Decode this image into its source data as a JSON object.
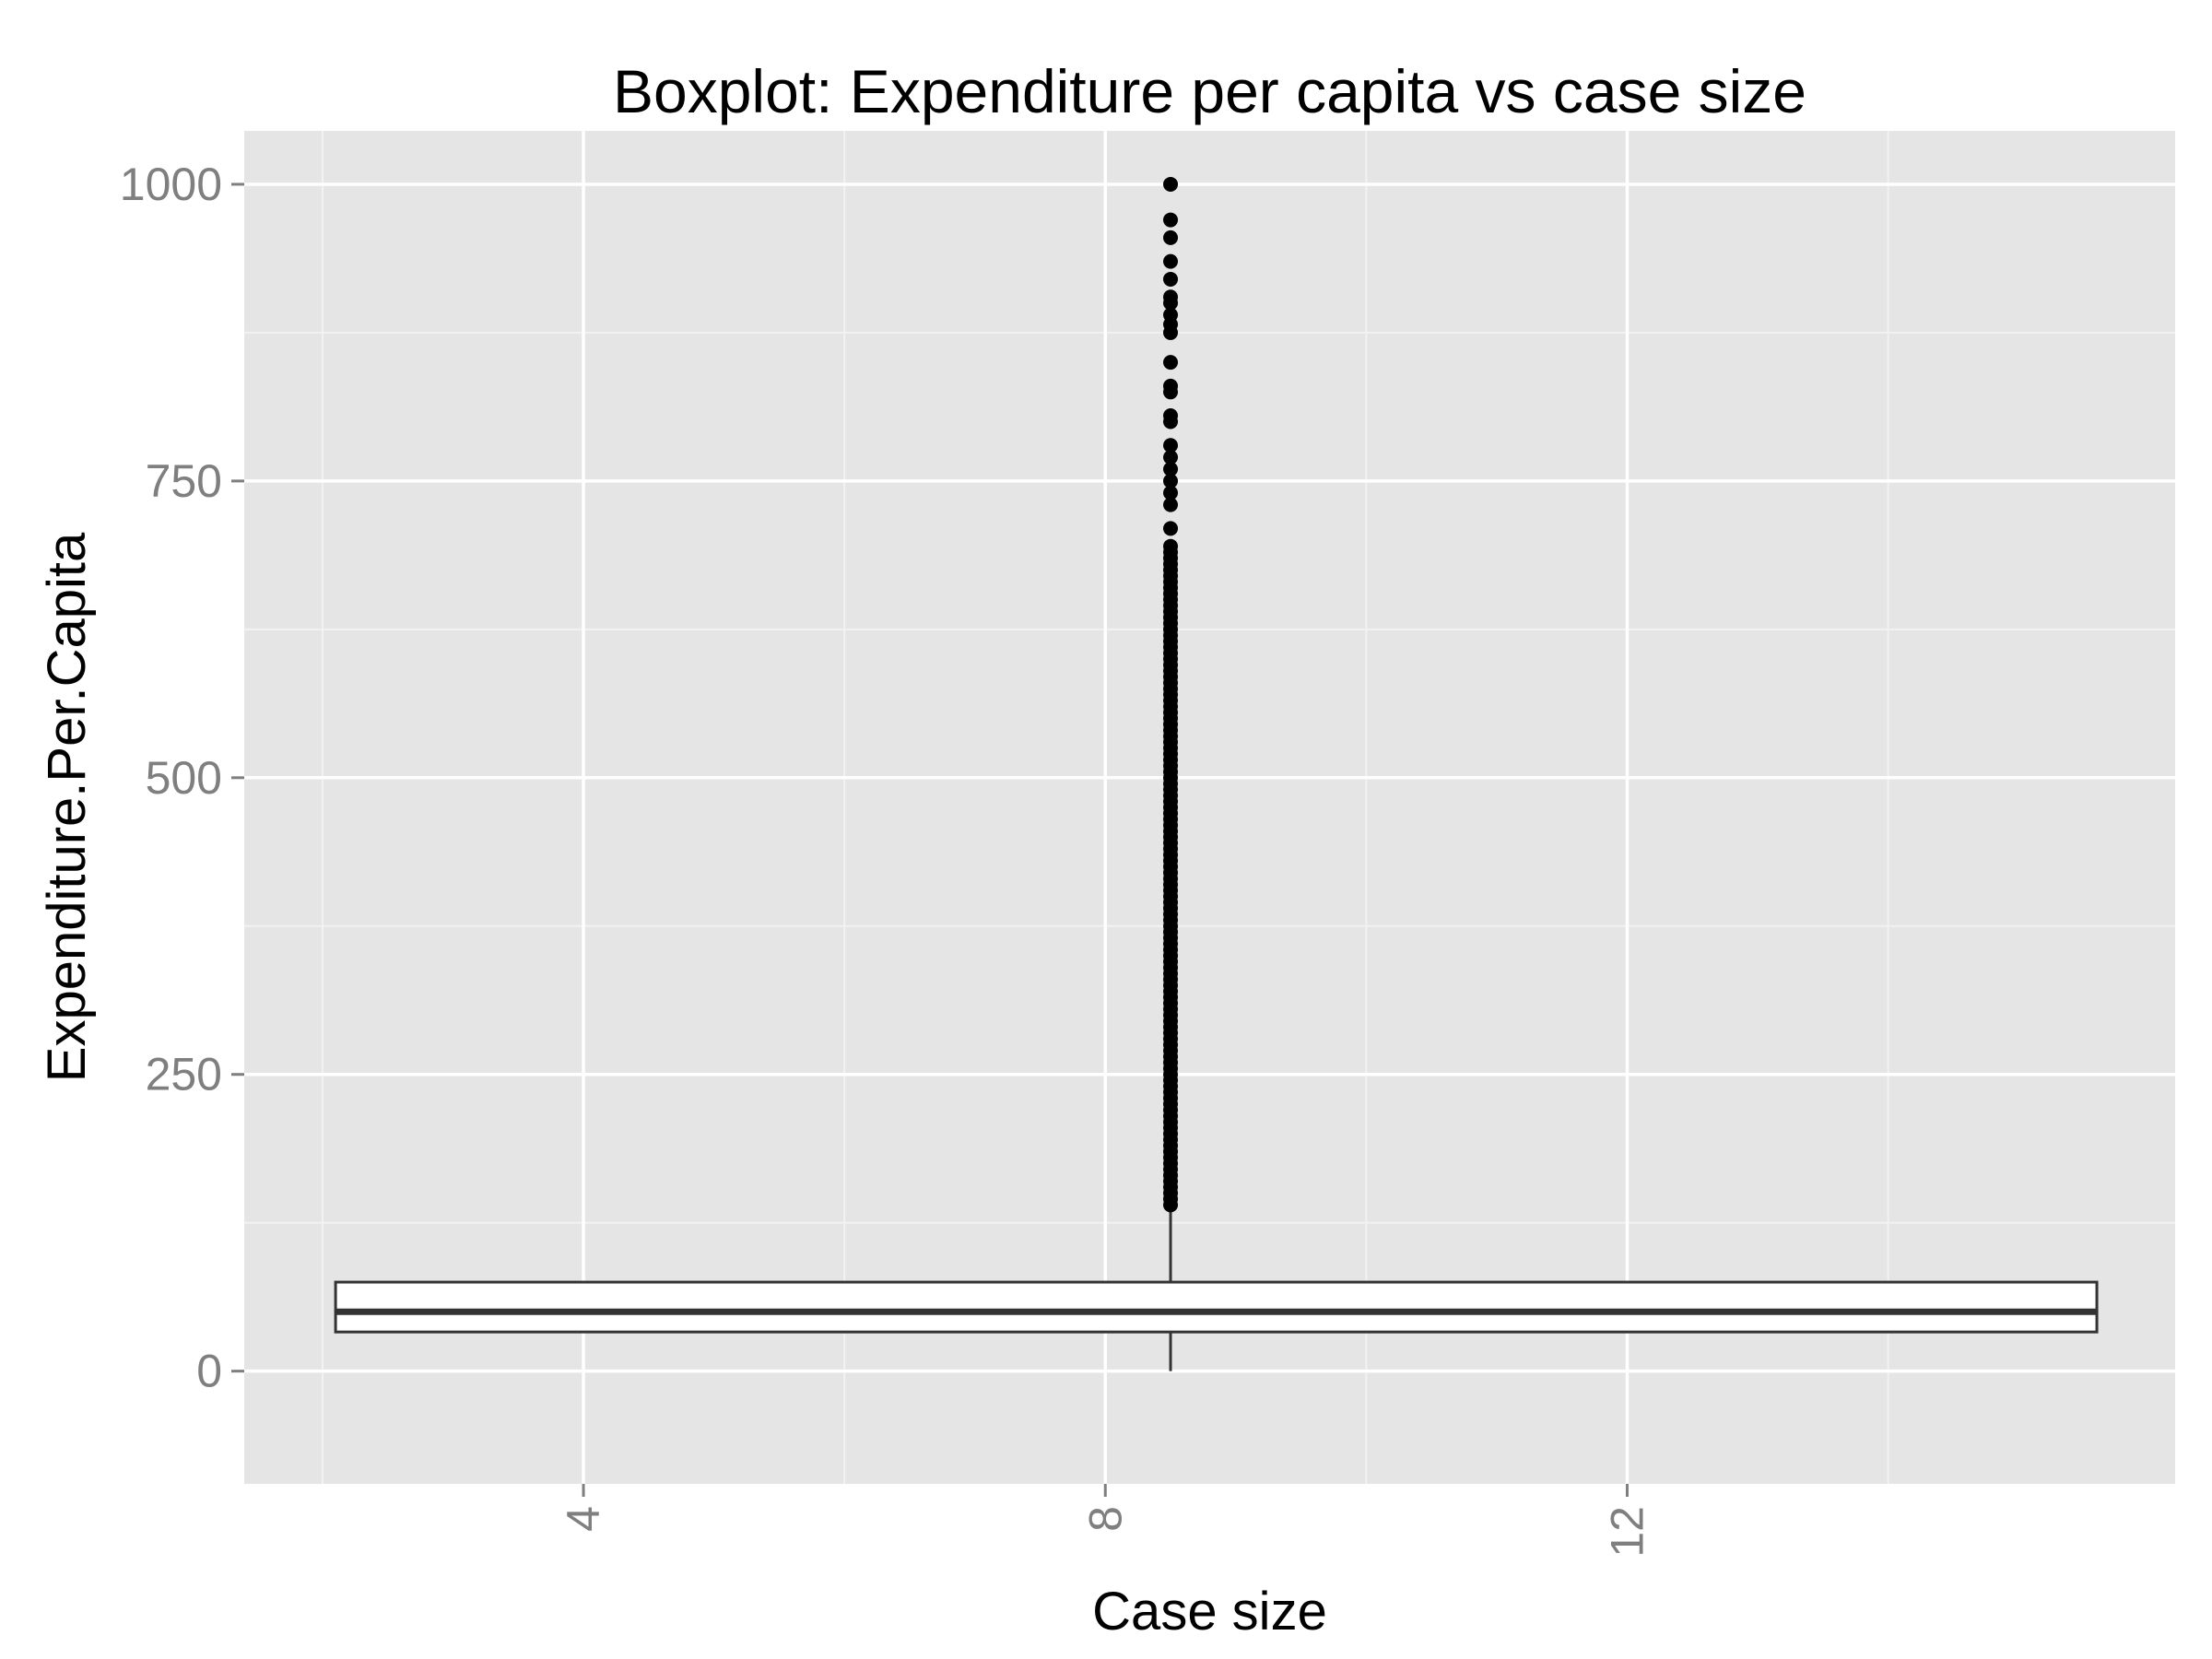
{
  "chart_data": {
    "type": "box",
    "title": "Boxplot: Expenditure per capita vs case size",
    "xlabel": "Case size",
    "ylabel": "Expenditure.Per.Capita",
    "xlim": [
      1.4,
      16.2
    ],
    "ylim": [
      -95,
      1045
    ],
    "x_ticks": [
      {
        "value": 4,
        "label": "4"
      },
      {
        "value": 8,
        "label": "8"
      },
      {
        "value": 12,
        "label": "12"
      }
    ],
    "x_minor_ticks": [
      2,
      6,
      10,
      14
    ],
    "y_ticks": [
      {
        "value": 0,
        "label": "0"
      },
      {
        "value": 250,
        "label": "250"
      },
      {
        "value": 500,
        "label": "500"
      },
      {
        "value": 750,
        "label": "750"
      },
      {
        "value": 1000,
        "label": "1000"
      }
    ],
    "y_minor_ticks": [
      125,
      375,
      625,
      875
    ],
    "x_tick_label_rotation": -90,
    "grid": true,
    "colors": {
      "panel_background": "#e5e5e5",
      "grid_major": "#ffffff",
      "grid_minor": "#f2f2f2",
      "box_fill": "#ffffff",
      "box_stroke": "#333333",
      "outlier": "#000000"
    },
    "box": {
      "x_center": 8.5,
      "x_min": 2.1,
      "x_max": 15.6,
      "whisker_low": 0,
      "q1": 33,
      "median": 50,
      "q3": 75,
      "whisker_high": 137,
      "outliers": [
        140,
        145,
        150,
        155,
        160,
        165,
        170,
        175,
        180,
        185,
        190,
        195,
        200,
        205,
        210,
        215,
        220,
        225,
        230,
        235,
        240,
        245,
        250,
        255,
        260,
        265,
        270,
        275,
        280,
        285,
        290,
        295,
        300,
        305,
        310,
        315,
        320,
        325,
        330,
        335,
        340,
        345,
        350,
        355,
        360,
        365,
        370,
        375,
        380,
        385,
        390,
        395,
        400,
        405,
        410,
        415,
        420,
        425,
        430,
        435,
        440,
        445,
        450,
        455,
        460,
        465,
        470,
        475,
        480,
        485,
        490,
        495,
        500,
        505,
        510,
        515,
        520,
        525,
        530,
        535,
        540,
        545,
        550,
        555,
        560,
        565,
        570,
        575,
        580,
        585,
        590,
        595,
        600,
        605,
        610,
        615,
        620,
        625,
        630,
        635,
        640,
        645,
        650,
        655,
        660,
        665,
        670,
        675,
        680,
        685,
        690,
        695,
        710,
        730,
        740,
        750,
        760,
        770,
        780,
        800,
        805,
        825,
        830,
        850,
        875,
        882,
        890,
        900,
        905,
        920,
        935,
        955,
        970,
        1000
      ]
    }
  }
}
